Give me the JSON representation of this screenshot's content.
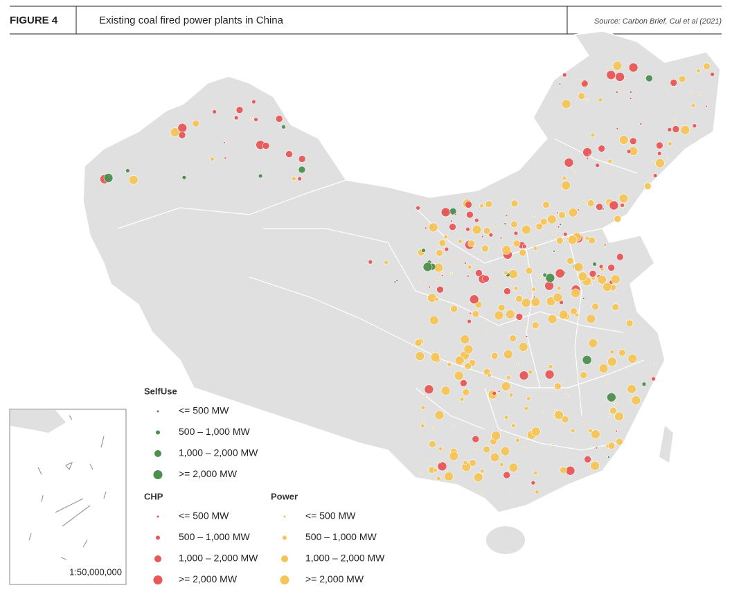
{
  "header": {
    "figure": "FIGURE 4",
    "title": "Existing coal fired power plants in China",
    "source": "Source: Carbon Brief, Cui et al (2021)"
  },
  "legend": {
    "groups": [
      {
        "title": "SelfUse",
        "color": "#4e8f4e",
        "items": [
          "<= 500 MW",
          "500 – 1,000 MW",
          "1,000 – 2,000 MW",
          ">= 2,000 MW"
        ]
      },
      {
        "title": "CHP",
        "color": "#e85858",
        "items": [
          "<= 500 MW",
          "500 – 1,000 MW",
          "1,000 – 2,000 MW",
          ">= 2,000 MW"
        ]
      },
      {
        "title": "Power",
        "color": "#f6c55a",
        "items": [
          "<= 500 MW",
          "500 – 1,000 MW",
          "1,000 – 2,000 MW",
          ">= 2,000 MW"
        ]
      }
    ]
  },
  "inset": {
    "scale": "1:50,000,000"
  }
}
